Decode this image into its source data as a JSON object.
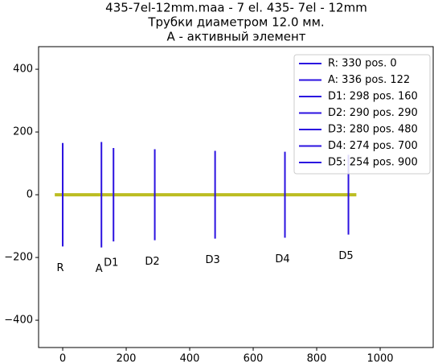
{
  "chart_data": {
    "type": "element-layout",
    "title": [
      "435-7el-12mm.maa - 7 el. 435- 7el - 12mm",
      "Трубки диаметром 12.0 мм.",
      "A - активный элемент"
    ],
    "xlim": [
      -76,
      1167
    ],
    "ylim": [
      -487,
      472
    ],
    "xticks": [
      0,
      200,
      400,
      600,
      800,
      1000
    ],
    "yticks": [
      {
        "value": -400,
        "label": "−400"
      },
      {
        "value": -200,
        "label": "−200"
      },
      0,
      200,
      400
    ],
    "legend": "upper right",
    "boom": {
      "color": "#bcbd22",
      "x": [
        -25,
        925
      ],
      "values": [
        0,
        0
      ]
    },
    "series": [
      {
        "name": "R: 330 pos. 0",
        "label": "R",
        "color": "#2b12e0",
        "x": [
          0,
          0
        ],
        "values": [
          -165,
          165
        ]
      },
      {
        "name": "A: 336 pos. 122",
        "label": "A",
        "color": "#2b12e0",
        "x": [
          122,
          122
        ],
        "values": [
          -168,
          168
        ]
      },
      {
        "name": "D1: 298 pos. 160",
        "label": "D1",
        "color": "#2b12e0",
        "x": [
          160,
          160
        ],
        "values": [
          -149,
          149
        ]
      },
      {
        "name": "D2: 290 pos. 290",
        "label": "D2",
        "color": "#2b12e0",
        "x": [
          290,
          290
        ],
        "values": [
          -145,
          145
        ]
      },
      {
        "name": "D3: 280 pos. 480",
        "label": "D3",
        "color": "#2b12e0",
        "x": [
          480,
          480
        ],
        "values": [
          -140,
          140
        ]
      },
      {
        "name": "D4: 274 pos. 700",
        "label": "D4",
        "color": "#2b12e0",
        "x": [
          700,
          700
        ],
        "values": [
          -137,
          137
        ]
      },
      {
        "name": "D5: 254 pos. 900",
        "label": "D5",
        "color": "#2b12e0",
        "x": [
          900,
          900
        ],
        "values": [
          -127,
          127
        ]
      }
    ]
  }
}
